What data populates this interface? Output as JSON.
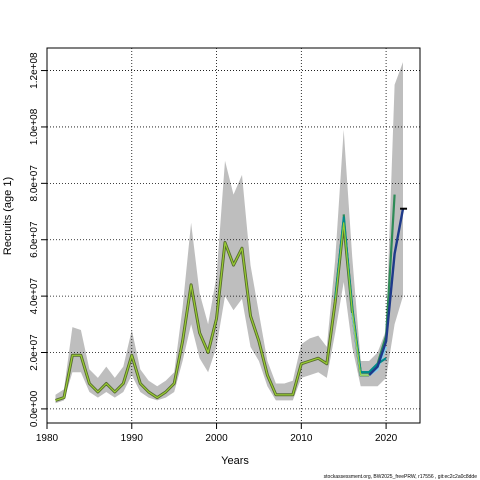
{
  "chart_data": {
    "type": "line",
    "xlabel": "Years",
    "ylabel": "Recruits (age 1)",
    "xlim": [
      1980,
      2024
    ],
    "ylim": [
      -5000000,
      128000000
    ],
    "x_ticks": [
      1980,
      1990,
      2000,
      2010,
      2020
    ],
    "x_tick_labels": [
      "1980",
      "1990",
      "2000",
      "2010",
      "2020"
    ],
    "y_ticks": [
      0,
      20000000,
      40000000,
      60000000,
      80000000,
      100000000,
      120000000
    ],
    "y_tick_labels": [
      "0.0e+00",
      "2.0e+07",
      "4.0e+07",
      "6.0e+07",
      "8.0e+07",
      "1.0e+08",
      "1.2e+08"
    ],
    "grid": true,
    "legend": "none",
    "footnote": "stockassessment.org, BW2025_freePRW, r17556 , git:ec2c2a0c8dde",
    "colors": {
      "band": "#bebebe",
      "main_line": "#556b2f",
      "main_line_overlay": "#9acd32",
      "retro_1": "#1e3a8a",
      "retro_2": "#008b8b",
      "retro_3": "#87ceeb",
      "retro_4": "#2e8b57",
      "final": "#000000"
    },
    "band": {
      "x": [
        1981,
        1982,
        1983,
        1984,
        1985,
        1986,
        1987,
        1988,
        1989,
        1990,
        1991,
        1992,
        1993,
        1994,
        1995,
        1996,
        1997,
        1998,
        1999,
        2000,
        2001,
        2002,
        2003,
        2004,
        2005,
        2006,
        2007,
        2008,
        2009,
        2010,
        2011,
        2012,
        2013,
        2014,
        2015,
        2016,
        2017,
        2018,
        2019,
        2020,
        2021,
        2022
      ],
      "lower": [
        2000000,
        3000000,
        13000000,
        13000000,
        6000000,
        4000000,
        6000000,
        4000000,
        6000000,
        12000000,
        6000000,
        4000000,
        3000000,
        4000000,
        6000000,
        17000000,
        30000000,
        18000000,
        13000000,
        22000000,
        40000000,
        35000000,
        39000000,
        22000000,
        17000000,
        8000000,
        3000000,
        3000000,
        3000000,
        11000000,
        12000000,
        13000000,
        11000000,
        27000000,
        45000000,
        22000000,
        8000000,
        8000000,
        8000000,
        11000000,
        30000000,
        40000000
      ],
      "upper": [
        5000000,
        7000000,
        29000000,
        28000000,
        14000000,
        11000000,
        15000000,
        11000000,
        15000000,
        28000000,
        14000000,
        10000000,
        8000000,
        10000000,
        13000000,
        36000000,
        66000000,
        41000000,
        30000000,
        47000000,
        88000000,
        76000000,
        83000000,
        51000000,
        34000000,
        17000000,
        9000000,
        9000000,
        10000000,
        23000000,
        25000000,
        26000000,
        22000000,
        53000000,
        99000000,
        54000000,
        17000000,
        17000000,
        20000000,
        28000000,
        115000000,
        123000000
      ]
    },
    "series": [
      {
        "x": [
          1981,
          1982,
          1983,
          1984,
          1985,
          1986,
          1987,
          1988,
          1989,
          1990,
          1991,
          1992,
          1993,
          1994,
          1995,
          1996,
          1997,
          1998,
          1999,
          2000,
          2001,
          2002,
          2003,
          2004,
          2005,
          2006,
          2007,
          2008,
          2009,
          2010,
          2011,
          2012,
          2013,
          2014,
          2015,
          2016,
          2017,
          2018
        ],
        "values": [
          3000000,
          4000000,
          19000000,
          19000000,
          9000000,
          6000000,
          9000000,
          6000000,
          9000000,
          19000000,
          9000000,
          6000000,
          4000000,
          6000000,
          9000000,
          24000000,
          44000000,
          27000000,
          20000000,
          32000000,
          59000000,
          51000000,
          57000000,
          33000000,
          24000000,
          12000000,
          5000000,
          5000000,
          5000000,
          16000000,
          17000000,
          18000000,
          16000000,
          38000000,
          66000000,
          35000000,
          12000000,
          12000000
        ]
      },
      {
        "x": [
          2015,
          2016,
          2017,
          2018,
          2019,
          2020,
          2021
        ],
        "values": [
          69000000,
          34000000,
          13000000,
          13000000,
          16000000,
          26000000,
          76000000
        ]
      },
      {
        "x": [
          2016,
          2017,
          2018,
          2019,
          2020
        ],
        "values": [
          34000000,
          12000000,
          12000000,
          14000000,
          22000000
        ]
      },
      {
        "x": [
          2017,
          2018,
          2019,
          2020
        ],
        "values": [
          13000000,
          13000000,
          16000000,
          18000000
        ]
      },
      {
        "x": [
          2014,
          2015,
          2016,
          2017,
          2018
        ],
        "values": [
          39000000,
          68000000,
          36000000,
          13000000,
          13000000
        ]
      },
      {
        "x": [
          2018,
          2019,
          2020,
          2021,
          2022
        ],
        "values": [
          12000000,
          15000000,
          24000000,
          55000000,
          71000000
        ]
      }
    ]
  }
}
